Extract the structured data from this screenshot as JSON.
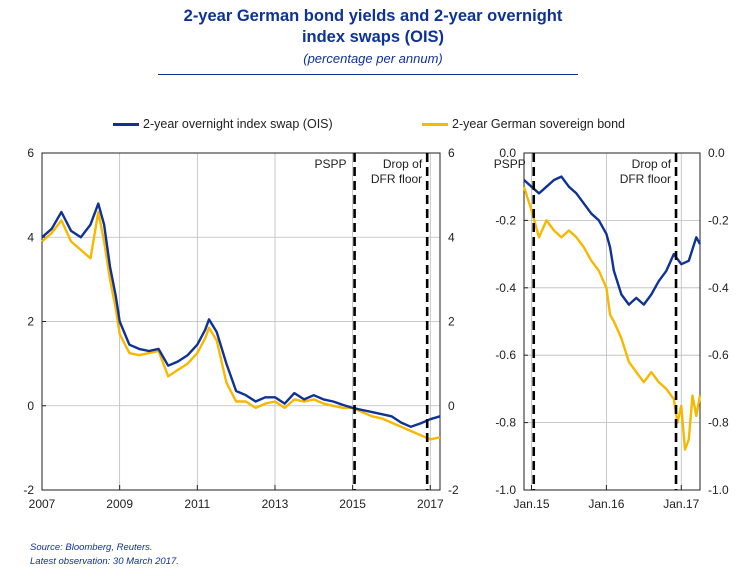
{
  "title_line1": "2-year German bond yields and 2-year overnight",
  "title_line2": "index swaps (OIS)",
  "subtitle": "(percentage per annum)",
  "legend": [
    {
      "label": "2-year overnight index swap (OIS)",
      "color": "#0e3296"
    },
    {
      "label": "2-year German sovereign bond",
      "color": "#f7b800"
    }
  ],
  "source_line1": "Source: Bloomberg, Reuters.",
  "source_line2": "Latest observation: 30 March 2017.",
  "colors": {
    "ois": "#0e3296",
    "bond": "#f7b800",
    "grid": "#bbbbbb",
    "axis": "#222222"
  },
  "chart_data": [
    {
      "type": "line",
      "x_range": [
        2007.0,
        2017.25
      ],
      "xticks": [
        "2007",
        "2009",
        "2011",
        "2013",
        "2015",
        "2017"
      ],
      "ylim": [
        -2,
        6
      ],
      "yticks_left": [
        "6",
        "4",
        "2",
        "0",
        "-2"
      ],
      "yticks_right": [
        "6",
        "4",
        "2",
        "0",
        "-2"
      ],
      "annotations": [
        {
          "label": "PSPP",
          "x": 2015.05,
          "line": "dashed-vertical"
        },
        {
          "label_line1": "Drop of",
          "label_line2": "DFR floor",
          "x": 2016.92,
          "line": "dashed-vertical"
        }
      ],
      "series": [
        {
          "name": "2-year overnight index swap (OIS)",
          "x": [
            2007.0,
            2007.25,
            2007.5,
            2007.75,
            2008.0,
            2008.25,
            2008.45,
            2008.6,
            2008.75,
            2008.9,
            2009.0,
            2009.25,
            2009.5,
            2009.75,
            2010.0,
            2010.25,
            2010.5,
            2010.75,
            2011.0,
            2011.2,
            2011.3,
            2011.5,
            2011.75,
            2012.0,
            2012.25,
            2012.5,
            2012.75,
            2013.0,
            2013.25,
            2013.5,
            2013.75,
            2014.0,
            2014.25,
            2014.5,
            2014.75,
            2015.0,
            2015.25,
            2015.5,
            2015.75,
            2016.0,
            2016.25,
            2016.5,
            2016.75,
            2017.0,
            2017.25
          ],
          "values": [
            4.0,
            4.2,
            4.6,
            4.15,
            4.0,
            4.3,
            4.8,
            4.3,
            3.3,
            2.6,
            2.0,
            1.45,
            1.35,
            1.3,
            1.35,
            0.95,
            1.05,
            1.2,
            1.45,
            1.8,
            2.05,
            1.75,
            1.0,
            0.35,
            0.25,
            0.1,
            0.2,
            0.2,
            0.05,
            0.3,
            0.15,
            0.25,
            0.15,
            0.1,
            0.02,
            -0.05,
            -0.1,
            -0.15,
            -0.2,
            -0.25,
            -0.4,
            -0.5,
            -0.42,
            -0.32,
            -0.25
          ]
        },
        {
          "name": "2-year German sovereign bond",
          "x": [
            2007.0,
            2007.25,
            2007.5,
            2007.75,
            2008.0,
            2008.25,
            2008.45,
            2008.6,
            2008.75,
            2008.9,
            2009.0,
            2009.25,
            2009.5,
            2009.75,
            2010.0,
            2010.25,
            2010.5,
            2010.75,
            2011.0,
            2011.2,
            2011.3,
            2011.5,
            2011.75,
            2012.0,
            2012.25,
            2012.5,
            2012.75,
            2013.0,
            2013.25,
            2013.5,
            2013.75,
            2014.0,
            2014.25,
            2014.5,
            2014.75,
            2015.0,
            2015.25,
            2015.5,
            2015.75,
            2016.0,
            2016.25,
            2016.5,
            2016.75,
            2017.0,
            2017.25
          ],
          "values": [
            3.9,
            4.1,
            4.4,
            3.9,
            3.7,
            3.5,
            4.6,
            3.9,
            3.0,
            2.3,
            1.7,
            1.25,
            1.2,
            1.25,
            1.3,
            0.7,
            0.85,
            1.0,
            1.25,
            1.6,
            1.85,
            1.55,
            0.55,
            0.1,
            0.1,
            -0.05,
            0.05,
            0.1,
            -0.05,
            0.15,
            0.1,
            0.15,
            0.05,
            0.0,
            -0.05,
            -0.05,
            -0.15,
            -0.25,
            -0.3,
            -0.4,
            -0.5,
            -0.6,
            -0.7,
            -0.8,
            -0.75
          ]
        }
      ]
    },
    {
      "type": "line",
      "x_range": [
        2014.9,
        2017.25
      ],
      "xticks": [
        "Jan.15",
        "Jan.16",
        "Jan.17"
      ],
      "ylim": [
        -1.0,
        0.0
      ],
      "yticks_left": [
        "0.0",
        "-0.2",
        "-0.4",
        "-0.6",
        "-0.8",
        "-1.0"
      ],
      "yticks_right": [
        "0.0",
        "-0.2",
        "-0.4",
        "-0.6",
        "-0.8",
        "-1.0"
      ],
      "annotations": [
        {
          "label": "PSPP",
          "x": 2015.03,
          "line": "dashed-vertical"
        },
        {
          "label_line1": "Drop of",
          "label_line2": "DFR floor",
          "x": 2016.93,
          "line": "dashed-vertical"
        }
      ],
      "series": [
        {
          "name": "2-year overnight index swap (OIS)",
          "x": [
            2014.9,
            2015.0,
            2015.1,
            2015.2,
            2015.3,
            2015.4,
            2015.5,
            2015.6,
            2015.7,
            2015.8,
            2015.9,
            2016.0,
            2016.05,
            2016.1,
            2016.2,
            2016.3,
            2016.4,
            2016.5,
            2016.6,
            2016.7,
            2016.8,
            2016.9,
            2017.0,
            2017.1,
            2017.2,
            2017.25
          ],
          "values": [
            -0.08,
            -0.1,
            -0.12,
            -0.1,
            -0.08,
            -0.07,
            -0.1,
            -0.12,
            -0.15,
            -0.18,
            -0.2,
            -0.24,
            -0.28,
            -0.35,
            -0.42,
            -0.45,
            -0.43,
            -0.45,
            -0.42,
            -0.38,
            -0.35,
            -0.3,
            -0.33,
            -0.32,
            -0.25,
            -0.27
          ]
        },
        {
          "name": "2-year German sovereign bond",
          "x": [
            2014.9,
            2015.0,
            2015.1,
            2015.2,
            2015.3,
            2015.4,
            2015.5,
            2015.6,
            2015.7,
            2015.8,
            2015.9,
            2016.0,
            2016.05,
            2016.1,
            2016.2,
            2016.3,
            2016.4,
            2016.5,
            2016.6,
            2016.7,
            2016.8,
            2016.9,
            2016.95,
            2017.0,
            2017.05,
            2017.1,
            2017.15,
            2017.2,
            2017.25
          ],
          "values": [
            -0.1,
            -0.17,
            -0.25,
            -0.2,
            -0.23,
            -0.25,
            -0.23,
            -0.25,
            -0.28,
            -0.32,
            -0.35,
            -0.4,
            -0.48,
            -0.5,
            -0.55,
            -0.62,
            -0.65,
            -0.68,
            -0.65,
            -0.68,
            -0.7,
            -0.73,
            -0.8,
            -0.75,
            -0.88,
            -0.85,
            -0.72,
            -0.78,
            -0.72
          ]
        }
      ]
    }
  ]
}
